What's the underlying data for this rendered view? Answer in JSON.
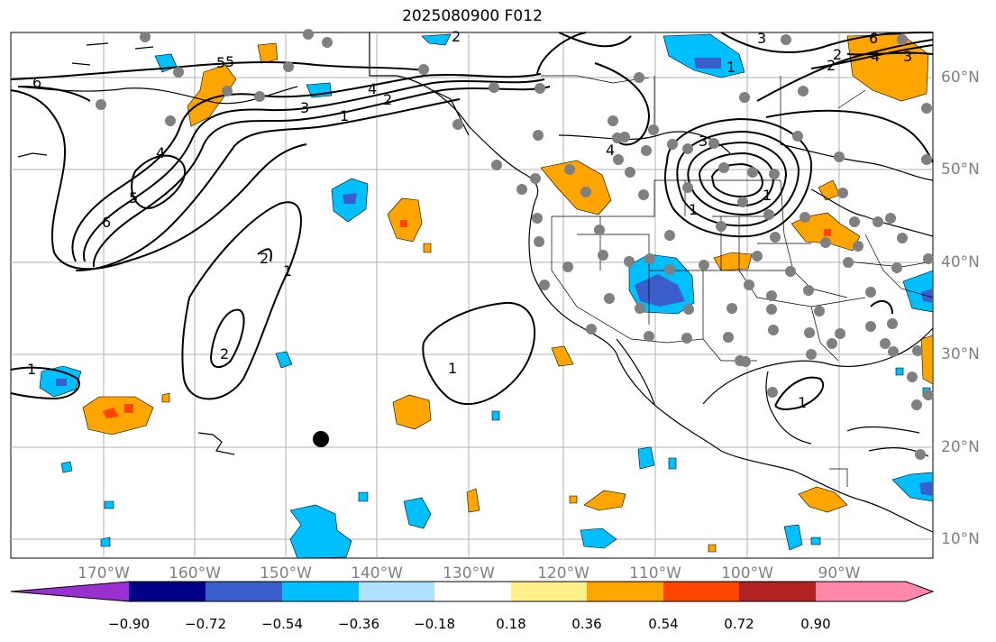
{
  "title": "2025080900 F012",
  "lat_labels": [
    "60°N",
    "50°N",
    "40°N",
    "30°N",
    "20°N",
    "10°N"
  ],
  "lon_labels": [
    "170°W",
    "160°W",
    "150°W",
    "140°W",
    "130°W",
    "120°W",
    "110°W",
    "100°W",
    "90°W"
  ],
  "colorbar": {
    "tick_labels": [
      "−0.90",
      "−0.72",
      "−0.54",
      "−0.36",
      "−0.18",
      "0.18",
      "0.36",
      "0.54",
      "0.72",
      "0.90"
    ],
    "colors": [
      "#9b30d0",
      "#00008b",
      "#3a5fcd",
      "#00bfff",
      "#b0e2ff",
      "#ffffff",
      "#fff08a",
      "#ffa500",
      "#ff4500",
      "#b22222",
      "#ff88aa"
    ]
  },
  "contour_labels": [
    "6",
    "5",
    "4",
    "3",
    "2",
    "1",
    "1",
    "2",
    "2",
    "1",
    "1",
    "1",
    "2",
    "3",
    "4",
    "6",
    "4",
    "5",
    "3",
    "2",
    "1",
    "6",
    "5",
    "4",
    "3",
    "2",
    "1",
    "1"
  ],
  "fill_colors": {
    "orange": "#ffa500",
    "red": "#ff4500",
    "light_blue": "#00bfff",
    "mid_blue": "#3a5fcd",
    "station_dot": "#808080",
    "marker": "#000000"
  }
}
